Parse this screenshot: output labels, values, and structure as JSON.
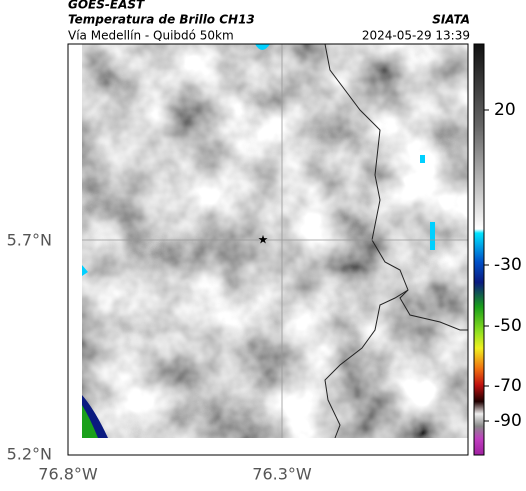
{
  "header": {
    "satellite": "GOES-EAST",
    "product": "Temperatura de Brillo CH13",
    "region": "Vía Medellín - Quibdó 50km",
    "source": "SIATA",
    "timestamp": "2024-05-29 13:39"
  },
  "map": {
    "lat_labels": [
      "5.7°N",
      "5.2°N"
    ],
    "lon_labels": [
      "76.8°W",
      "76.3°W"
    ],
    "colorbar_ticks": [
      20,
      -30,
      -50,
      -70,
      -90
    ]
  }
}
